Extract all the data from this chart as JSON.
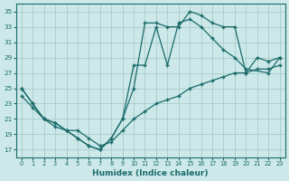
{
  "xlabel": "Humidex (Indice chaleur)",
  "bg_color": "#cce8e8",
  "line_color": "#1a6b6b",
  "grid_color": "#aacccc",
  "xlim": [
    -0.5,
    23.5
  ],
  "ylim": [
    16.0,
    36.0
  ],
  "yticks": [
    17,
    19,
    21,
    23,
    25,
    27,
    29,
    31,
    33,
    35
  ],
  "xticks": [
    0,
    1,
    2,
    3,
    4,
    5,
    6,
    7,
    8,
    9,
    10,
    11,
    12,
    13,
    14,
    15,
    16,
    17,
    18,
    19,
    20,
    21,
    22,
    23
  ],
  "line1_x": [
    0,
    1,
    2,
    3,
    4,
    5,
    6,
    7,
    8,
    9,
    10,
    11,
    12,
    13,
    14,
    15,
    16,
    17,
    18,
    19,
    20,
    21,
    22,
    23
  ],
  "line1_y": [
    25,
    23,
    21,
    20.5,
    19.5,
    18.5,
    17.5,
    17,
    18.5,
    21,
    25,
    33.5,
    33.5,
    33,
    33,
    35,
    34.5,
    33.5,
    33,
    33,
    27,
    29,
    28.5,
    29
  ],
  "line2_x": [
    0,
    1,
    2,
    3,
    4,
    5,
    6,
    7,
    8,
    9,
    10,
    11,
    12,
    13,
    14,
    15,
    16,
    17,
    18,
    19,
    20,
    22,
    23
  ],
  "line2_y": [
    25,
    23,
    21,
    20.5,
    19.5,
    18.5,
    17.5,
    17,
    18.5,
    21,
    28,
    28,
    33,
    28,
    33.5,
    34,
    33,
    31.5,
    30,
    29,
    27.5,
    27,
    29
  ],
  "line3_x": [
    0,
    1,
    2,
    3,
    4,
    5,
    6,
    7,
    8,
    9,
    10,
    11,
    12,
    13,
    14,
    15,
    16,
    17,
    18,
    19,
    20,
    21,
    22,
    23
  ],
  "line3_y": [
    24,
    22.5,
    21,
    20,
    19.5,
    19.5,
    18.5,
    17.5,
    18,
    19.5,
    21,
    22,
    23,
    23.5,
    24,
    25,
    25.5,
    26,
    26.5,
    27,
    27,
    27.5,
    27.5,
    28
  ]
}
